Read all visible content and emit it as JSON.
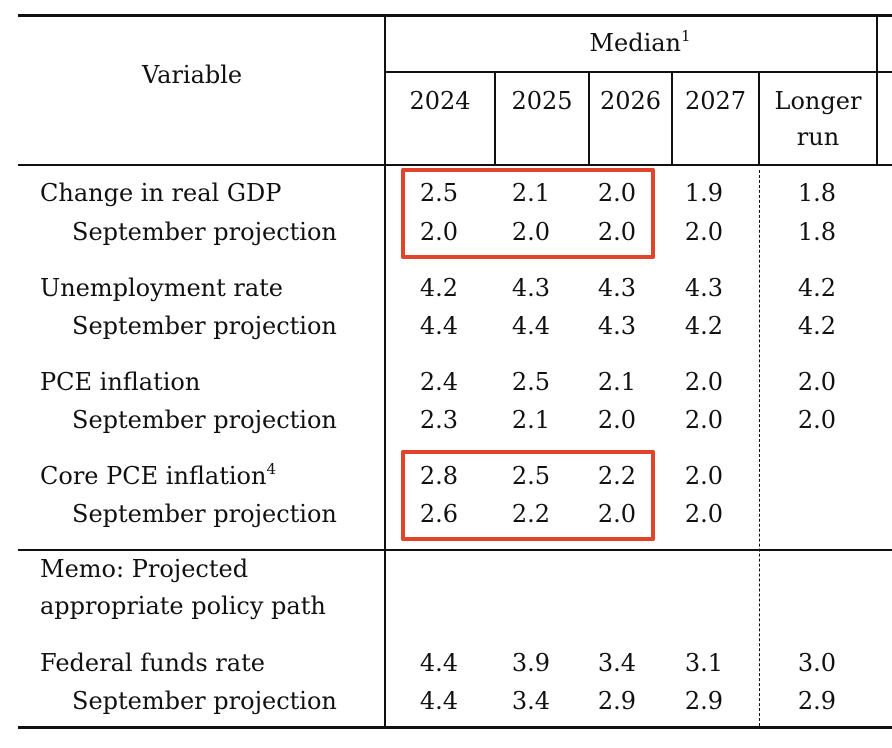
{
  "header": {
    "variable": "Variable",
    "median": "Median",
    "median_note": "1",
    "years": [
      "2024",
      "2025",
      "2026",
      "2027"
    ],
    "longer_run_line1": "Longer",
    "longer_run_line2": "run"
  },
  "rows": {
    "gdp": {
      "label": "Change in real GDP",
      "values": [
        "2.5",
        "2.1",
        "2.0",
        "1.9",
        "1.8"
      ]
    },
    "gdp_sep": {
      "label": "September projection",
      "values": [
        "2.0",
        "2.0",
        "2.0",
        "2.0",
        "1.8"
      ]
    },
    "unemp": {
      "label": "Unemployment rate",
      "values": [
        "4.2",
        "4.3",
        "4.3",
        "4.3",
        "4.2"
      ]
    },
    "unemp_sep": {
      "label": "September projection",
      "values": [
        "4.4",
        "4.4",
        "4.3",
        "4.2",
        "4.2"
      ]
    },
    "pce": {
      "label": "PCE inflation",
      "values": [
        "2.4",
        "2.5",
        "2.1",
        "2.0",
        "2.0"
      ]
    },
    "pce_sep": {
      "label": "September projection",
      "values": [
        "2.3",
        "2.1",
        "2.0",
        "2.0",
        "2.0"
      ]
    },
    "core": {
      "label": "Core PCE inflation",
      "note": "4",
      "values": [
        "2.8",
        "2.5",
        "2.2",
        "2.0"
      ]
    },
    "core_sep": {
      "label": "September projection",
      "values": [
        "2.6",
        "2.2",
        "2.0",
        "2.0"
      ]
    },
    "memo_line1": "Memo: Projected",
    "memo_line2": "appropriate policy path",
    "ffr": {
      "label": "Federal funds rate",
      "values": [
        "4.4",
        "3.9",
        "3.4",
        "3.1",
        "3.0"
      ]
    },
    "ffr_sep": {
      "label": "September projection",
      "values": [
        "4.4",
        "3.4",
        "2.9",
        "2.9",
        "2.9"
      ]
    }
  },
  "highlight_color": "#e0452c"
}
